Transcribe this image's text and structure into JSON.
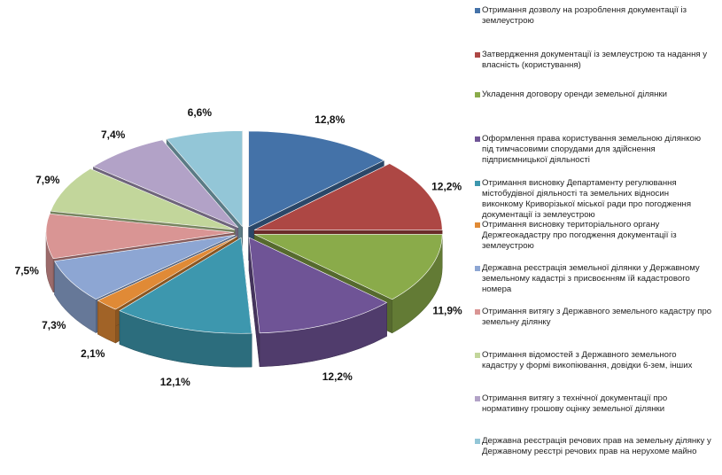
{
  "chart_data": {
    "type": "pie",
    "style": "3d-exploded",
    "slices": [
      {
        "label": "Отримання дозволу на розроблення документації із землеустрою",
        "value": 12.8,
        "display": "12,8%",
        "color": "#4472a8"
      },
      {
        "label": "Затвердження документації із землеустрою та надання у власність (користування)",
        "value": 12.2,
        "display": "12,2%",
        "color": "#ad4744"
      },
      {
        "label": "Укладення договору оренди земельної ділянки",
        "value": 11.9,
        "display": "11,9%",
        "color": "#8aab4a"
      },
      {
        "label": "Оформлення права користування земельною ділянкою під тимчасовими спорудами для здійснення підприємницької діяльності",
        "value": 12.2,
        "display": "12,2%",
        "color": "#6f5496"
      },
      {
        "label": "Отримання висновку Департаменту регулювання містобудівної діяльності та земельних відносин виконкому Криворізької міської ради про погодження документації із землеустрою",
        "value": 12.1,
        "display": "12,1%",
        "color": "#3d97ae"
      },
      {
        "label": "Отримання висновку територіального органу Держгеокадастру про погодження документації із землеустрою",
        "value": 2.1,
        "display": "2,1%",
        "color": "#e08a36"
      },
      {
        "label": "Державна реєстрація земельної ділянки у Державному земельному кадастрі з присвоєнням їй кадастрового номера",
        "value": 7.3,
        "display": "7,3%",
        "color": "#8da6d3"
      },
      {
        "label": "Отримання витягу з Державного земельного кадастру про земельну ділянку",
        "value": 7.5,
        "display": "7,5%",
        "color": "#d99594"
      },
      {
        "label": "Отримання відомостей з Державного земельного кадастру у формі викопіювання, довідки 6-зем, інших",
        "value": 7.9,
        "display": "7,9%",
        "color": "#c2d69b"
      },
      {
        "label": "Отримання витягу з технічної документації про нормативну грошову оцінку земельної ділянки",
        "value": 7.4,
        "display": "7,4%",
        "color": "#b2a2c7"
      },
      {
        "label": "Державна реєстрація речових прав на земельну ділянку у Державному реєстрі речових прав на нерухоме майно",
        "value": 6.6,
        "display": "6,6%",
        "color": "#93c6d7"
      }
    ],
    "legend_position": "right"
  },
  "legend": [
    {
      "text": "Отримання дозволу на розроблення документації із землеустрою",
      "color": "#4472a8"
    },
    {
      "text": "Затвердження документації із землеустрою та надання у власність (користування)",
      "color": "#ad4744"
    },
    {
      "text": "Укладення договору оренди земельної ділянки",
      "color": "#8aab4a"
    },
    {
      "text": "Оформлення права користування земельною ділянкою під тимчасовими спорудами для здійснення підприємницької діяльності",
      "color": "#6f5496"
    },
    {
      "text": "Отримання висновку Департаменту регулювання містобудівної діяльності та земельних відносин виконкому Криворізької міської ради про погодження документації із землеустрою",
      "color": "#3d97ae"
    },
    {
      "text": "Отримання висновку територіального органу Держгеокадастру про погодження документації із землеустрою",
      "color": "#e08a36"
    },
    {
      "text": "Державна реєстрація земельної ділянки у Державному земельному кадастрі з присвоєнням їй кадастрового номера",
      "color": "#8da6d3"
    },
    {
      "text": "Отримання витягу з Державного земельного кадастру про земельну ділянку",
      "color": "#d99594"
    },
    {
      "text": "Отримання відомостей з Державного земельного кадастру у формі викопіювання, довідки 6-зем, інших",
      "color": "#c2d69b"
    },
    {
      "text": "Отримання витягу з технічної документації про нормативну грошову оцінку земельної ділянки",
      "color": "#b2a2c7"
    },
    {
      "text": "Державна реєстрація речових прав на земельну ділянку у Державному реєстрі речових прав на нерухоме майно",
      "color": "#93c6d7"
    }
  ]
}
